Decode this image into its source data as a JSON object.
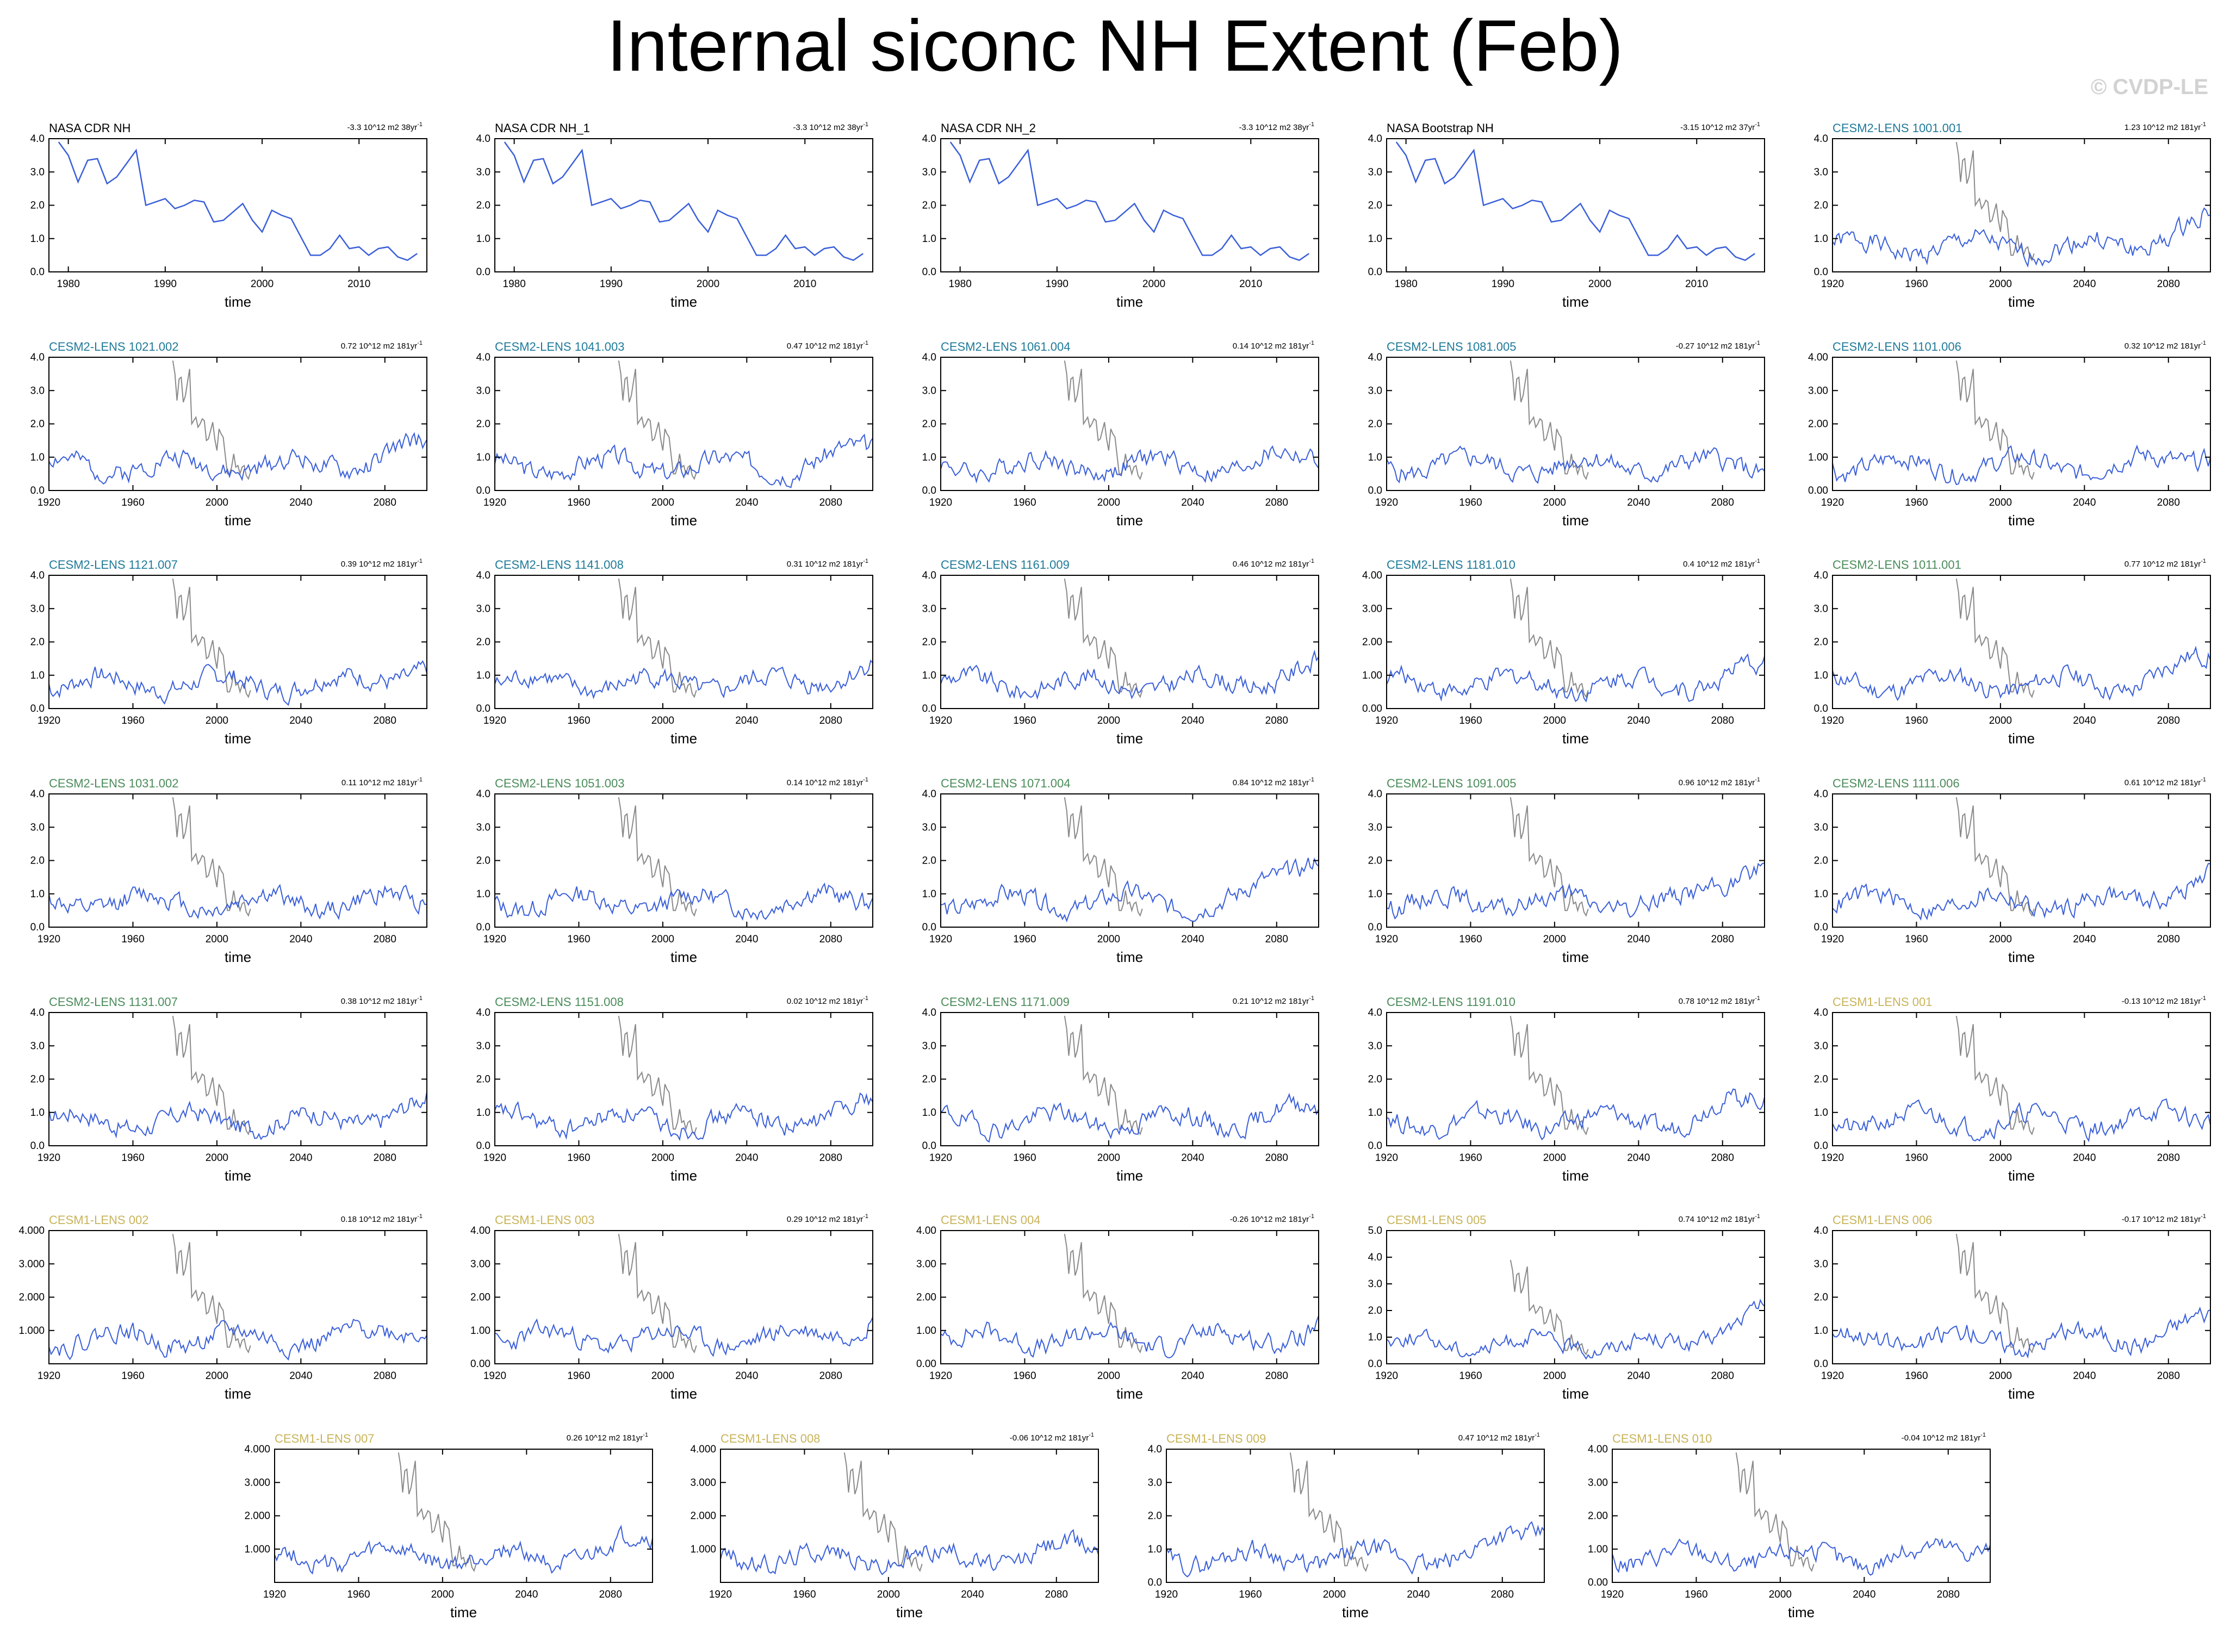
{
  "title": "Internal siconc NH Extent (Feb)",
  "watermark": "© CVDP-LE",
  "colors": {
    "series": "#3a5fd9",
    "observed_overlay": "#8a8a8a",
    "zero_line": "#b5b5b5",
    "cesm2_blue": "#1f7a99",
    "cesm2_green": "#4a8c5a",
    "cesm1_gold": "#c9b45a",
    "obs_black": "#000000"
  },
  "chart_data": [
    {
      "type": "line",
      "title": "NASA CDR NH",
      "title_color": "obs_black",
      "trend": "-3.3 10^12 m2 38yr",
      "xlabel": "time",
      "xlim": [
        1978,
        2017
      ],
      "ylim": [
        0,
        4.0
      ],
      "xticks": [
        1980,
        1990,
        2000,
        2010
      ],
      "yticks": [
        "0.0",
        "1.0",
        "2.0",
        "3.0",
        "4.0"
      ],
      "kind": "obs"
    },
    {
      "type": "line",
      "title": "NASA CDR NH_1",
      "title_color": "obs_black",
      "trend": "-3.3 10^12 m2 38yr",
      "xlabel": "time",
      "xlim": [
        1978,
        2017
      ],
      "ylim": [
        0,
        4.0
      ],
      "xticks": [
        1980,
        1990,
        2000,
        2010
      ],
      "yticks": [
        "0.0",
        "1.0",
        "2.0",
        "3.0",
        "4.0"
      ],
      "kind": "obs"
    },
    {
      "type": "line",
      "title": "NASA CDR NH_2",
      "title_color": "obs_black",
      "trend": "-3.3 10^12 m2 38yr",
      "xlabel": "time",
      "xlim": [
        1978,
        2017
      ],
      "ylim": [
        0,
        4.0
      ],
      "xticks": [
        1980,
        1990,
        2000,
        2010
      ],
      "yticks": [
        "0.0",
        "1.0",
        "2.0",
        "3.0",
        "4.0"
      ],
      "kind": "obs"
    },
    {
      "type": "line",
      "title": "NASA Bootstrap NH",
      "title_color": "obs_black",
      "trend": "-3.15 10^12 m2 37yr",
      "xlabel": "time",
      "xlim": [
        1978,
        2017
      ],
      "ylim": [
        0,
        4.0
      ],
      "xticks": [
        1980,
        1990,
        2000,
        2010
      ],
      "yticks": [
        "0.0",
        "1.0",
        "2.0",
        "3.0",
        "4.0"
      ],
      "kind": "obs"
    },
    {
      "type": "line",
      "title": "CESM2-LENS 1001.001",
      "title_color": "cesm2_blue",
      "trend": "1.23 10^12 m2 181yr",
      "xlabel": "time",
      "xlim": [
        1920,
        2100
      ],
      "ylim": [
        0,
        4.0
      ],
      "xticks": [
        1920,
        1960,
        2000,
        2040,
        2080
      ],
      "yticks": [
        "0.0",
        "1.0",
        "2.0",
        "3.0",
        "4.0"
      ],
      "kind": "model",
      "seed": 1,
      "ramp": 0.9
    },
    {
      "type": "line",
      "title": "CESM2-LENS 1021.002",
      "title_color": "cesm2_blue",
      "trend": "0.72 10^12 m2 181yr",
      "xlabel": "time",
      "xlim": [
        1920,
        2100
      ],
      "ylim": [
        0,
        4.0
      ],
      "xticks": [
        1920,
        1960,
        2000,
        2040,
        2080
      ],
      "yticks": [
        "0.0",
        "1.0",
        "2.0",
        "3.0",
        "4.0"
      ],
      "kind": "model",
      "seed": 2,
      "ramp": 0.6
    },
    {
      "type": "line",
      "title": "CESM2-LENS 1041.003",
      "title_color": "cesm2_blue",
      "trend": "0.47 10^12 m2 181yr",
      "xlabel": "time",
      "xlim": [
        1920,
        2100
      ],
      "ylim": [
        0,
        4.0
      ],
      "xticks": [
        1920,
        1960,
        2000,
        2040,
        2080
      ],
      "yticks": [
        "0.0",
        "1.0",
        "2.0",
        "3.0",
        "4.0"
      ],
      "kind": "model",
      "seed": 3,
      "ramp": 0.5
    },
    {
      "type": "line",
      "title": "CESM2-LENS 1061.004",
      "title_color": "cesm2_blue",
      "trend": "0.14 10^12 m2 181yr",
      "xlabel": "time",
      "xlim": [
        1920,
        2100
      ],
      "ylim": [
        0,
        4.0
      ],
      "xticks": [
        1920,
        1960,
        2000,
        2040,
        2080
      ],
      "yticks": [
        "0.0",
        "1.0",
        "2.0",
        "3.0",
        "4.0"
      ],
      "kind": "model",
      "seed": 4,
      "ramp": 0.3
    },
    {
      "type": "line",
      "title": "CESM2-LENS 1081.005",
      "title_color": "cesm2_blue",
      "trend": "-0.27 10^12 m2 181yr",
      "xlabel": "time",
      "xlim": [
        1920,
        2100
      ],
      "ylim": [
        0,
        4.0
      ],
      "xticks": [
        1920,
        1960,
        2000,
        2040,
        2080
      ],
      "yticks": [
        "0.0",
        "1.0",
        "2.0",
        "3.0",
        "4.0"
      ],
      "kind": "model",
      "seed": 5,
      "ramp": 0.0
    },
    {
      "type": "line",
      "title": "CESM2-LENS 1101.006",
      "title_color": "cesm2_blue",
      "trend": "0.32 10^12 m2 181yr",
      "xlabel": "time",
      "xlim": [
        1920,
        2100
      ],
      "ylim": [
        0,
        4.0
      ],
      "xticks": [
        1920,
        1960,
        2000,
        2040,
        2080
      ],
      "yticks": [
        "0.00",
        "1.00",
        "2.00",
        "3.00",
        "4.00"
      ],
      "kind": "model",
      "seed": 6,
      "ramp": 0.4
    },
    {
      "type": "line",
      "title": "CESM2-LENS 1121.007",
      "title_color": "cesm2_blue",
      "trend": "0.39 10^12 m2 181yr",
      "xlabel": "time",
      "xlim": [
        1920,
        2100
      ],
      "ylim": [
        0,
        4.0
      ],
      "xticks": [
        1920,
        1960,
        2000,
        2040,
        2080
      ],
      "yticks": [
        "0.0",
        "1.0",
        "2.0",
        "3.0",
        "4.0"
      ],
      "kind": "model",
      "seed": 7,
      "ramp": 0.5
    },
    {
      "type": "line",
      "title": "CESM2-LENS 1141.008",
      "title_color": "cesm2_blue",
      "trend": "0.31 10^12 m2 181yr",
      "xlabel": "time",
      "xlim": [
        1920,
        2100
      ],
      "ylim": [
        0,
        4.0
      ],
      "xticks": [
        1920,
        1960,
        2000,
        2040,
        2080
      ],
      "yticks": [
        "0.0",
        "1.0",
        "2.0",
        "3.0",
        "4.0"
      ],
      "kind": "model",
      "seed": 8,
      "ramp": 0.5
    },
    {
      "type": "line",
      "title": "CESM2-LENS 1161.009",
      "title_color": "cesm2_blue",
      "trend": "0.46 10^12 m2 181yr",
      "xlabel": "time",
      "xlim": [
        1920,
        2100
      ],
      "ylim": [
        0,
        4.0
      ],
      "xticks": [
        1920,
        1960,
        2000,
        2040,
        2080
      ],
      "yticks": [
        "0.0",
        "1.0",
        "2.0",
        "3.0",
        "4.0"
      ],
      "kind": "model",
      "seed": 9,
      "ramp": 0.5
    },
    {
      "type": "line",
      "title": "CESM2-LENS 1181.010",
      "title_color": "cesm2_blue",
      "trend": "0.4 10^12 m2 181yr",
      "xlabel": "time",
      "xlim": [
        1920,
        2100
      ],
      "ylim": [
        0,
        4.0
      ],
      "xticks": [
        1920,
        1960,
        2000,
        2040,
        2080
      ],
      "yticks": [
        "0.00",
        "1.00",
        "2.00",
        "3.00",
        "4.00"
      ],
      "kind": "model",
      "seed": 10,
      "ramp": 0.4
    },
    {
      "type": "line",
      "title": "CESM2-LENS 1011.001",
      "title_color": "cesm2_green",
      "trend": "0.77 10^12 m2 181yr",
      "xlabel": "time",
      "xlim": [
        1920,
        2100
      ],
      "ylim": [
        0,
        4.0
      ],
      "xticks": [
        1920,
        1960,
        2000,
        2040,
        2080
      ],
      "yticks": [
        "0.0",
        "1.0",
        "2.0",
        "3.0",
        "4.0"
      ],
      "kind": "model",
      "seed": 11,
      "ramp": 0.8
    },
    {
      "type": "line",
      "title": "CESM2-LENS 1031.002",
      "title_color": "cesm2_green",
      "trend": "0.11 10^12 m2 181yr",
      "xlabel": "time",
      "xlim": [
        1920,
        2100
      ],
      "ylim": [
        0,
        4.0
      ],
      "xticks": [
        1920,
        1960,
        2000,
        2040,
        2080
      ],
      "yticks": [
        "0.0",
        "1.0",
        "2.0",
        "3.0",
        "4.0"
      ],
      "kind": "model",
      "seed": 12,
      "ramp": 0.1
    },
    {
      "type": "line",
      "title": "CESM2-LENS 1051.003",
      "title_color": "cesm2_green",
      "trend": "0.14 10^12 m2 181yr",
      "xlabel": "time",
      "xlim": [
        1920,
        2100
      ],
      "ylim": [
        0,
        4.0
      ],
      "xticks": [
        1920,
        1960,
        2000,
        2040,
        2080
      ],
      "yticks": [
        "0.0",
        "1.0",
        "2.0",
        "3.0",
        "4.0"
      ],
      "kind": "model",
      "seed": 13,
      "ramp": 0.2
    },
    {
      "type": "line",
      "title": "CESM2-LENS 1071.004",
      "title_color": "cesm2_green",
      "trend": "0.84 10^12 m2 181yr",
      "xlabel": "time",
      "xlim": [
        1920,
        2100
      ],
      "ylim": [
        0,
        4.0
      ],
      "xticks": [
        1920,
        1960,
        2000,
        2040,
        2080
      ],
      "yticks": [
        "0.0",
        "1.0",
        "2.0",
        "3.0",
        "4.0"
      ],
      "kind": "model",
      "seed": 14,
      "ramp": 1.6
    },
    {
      "type": "line",
      "title": "CESM2-LENS 1091.005",
      "title_color": "cesm2_green",
      "trend": "0.96 10^12 m2 181yr",
      "xlabel": "time",
      "xlim": [
        1920,
        2100
      ],
      "ylim": [
        0,
        4.0
      ],
      "xticks": [
        1920,
        1960,
        2000,
        2040,
        2080
      ],
      "yticks": [
        "0.0",
        "1.0",
        "2.0",
        "3.0",
        "4.0"
      ],
      "kind": "model",
      "seed": 15,
      "ramp": 1.3
    },
    {
      "type": "line",
      "title": "CESM2-LENS 1111.006",
      "title_color": "cesm2_green",
      "trend": "0.61 10^12 m2 181yr",
      "xlabel": "time",
      "xlim": [
        1920,
        2100
      ],
      "ylim": [
        0,
        4.0
      ],
      "xticks": [
        1920,
        1960,
        2000,
        2040,
        2080
      ],
      "yticks": [
        "0.0",
        "1.0",
        "2.0",
        "3.0",
        "4.0"
      ],
      "kind": "model",
      "seed": 16,
      "ramp": 0.8
    },
    {
      "type": "line",
      "title": "CESM2-LENS 1131.007",
      "title_color": "cesm2_green",
      "trend": "0.38 10^12 m2 181yr",
      "xlabel": "time",
      "xlim": [
        1920,
        2100
      ],
      "ylim": [
        0,
        4.0
      ],
      "xticks": [
        1920,
        1960,
        2000,
        2040,
        2080
      ],
      "yticks": [
        "0.0",
        "1.0",
        "2.0",
        "3.0",
        "4.0"
      ],
      "kind": "model",
      "seed": 17,
      "ramp": 0.5
    },
    {
      "type": "line",
      "title": "CESM2-LENS 1151.008",
      "title_color": "cesm2_green",
      "trend": "0.02 10^12 m2 181yr",
      "xlabel": "time",
      "xlim": [
        1920,
        2100
      ],
      "ylim": [
        0,
        4.0
      ],
      "xticks": [
        1920,
        1960,
        2000,
        2040,
        2080
      ],
      "yticks": [
        "0.0",
        "1.0",
        "2.0",
        "3.0",
        "4.0"
      ],
      "kind": "model",
      "seed": 18,
      "ramp": 0.5
    },
    {
      "type": "line",
      "title": "CESM2-LENS 1171.009",
      "title_color": "cesm2_green",
      "trend": "0.21 10^12 m2 181yr",
      "xlabel": "time",
      "xlim": [
        1920,
        2100
      ],
      "ylim": [
        0,
        4.0
      ],
      "xticks": [
        1920,
        1960,
        2000,
        2040,
        2080
      ],
      "yticks": [
        "0.0",
        "1.0",
        "2.0",
        "3.0",
        "4.0"
      ],
      "kind": "model",
      "seed": 19,
      "ramp": 0.4
    },
    {
      "type": "line",
      "title": "CESM2-LENS 1191.010",
      "title_color": "cesm2_green",
      "trend": "0.78 10^12 m2 181yr",
      "xlabel": "time",
      "xlim": [
        1920,
        2100
      ],
      "ylim": [
        0,
        4.0
      ],
      "xticks": [
        1920,
        1960,
        2000,
        2040,
        2080
      ],
      "yticks": [
        "0.0",
        "1.0",
        "2.0",
        "3.0",
        "4.0"
      ],
      "kind": "model",
      "seed": 20,
      "ramp": 0.8
    },
    {
      "type": "line",
      "title": "CESM1-LENS 001",
      "title_color": "cesm1_gold",
      "trend": "-0.13 10^12 m2 181yr",
      "xlabel": "time",
      "xlim": [
        1920,
        2100
      ],
      "ylim": [
        0,
        4.0
      ],
      "xticks": [
        1920,
        1960,
        2000,
        2040,
        2080
      ],
      "yticks": [
        "0.0",
        "1.0",
        "2.0",
        "3.0",
        "4.0"
      ],
      "kind": "model",
      "seed": 21,
      "ramp": 0.2
    },
    {
      "type": "line",
      "title": "CESM1-LENS 002",
      "title_color": "cesm1_gold",
      "trend": "0.18 10^12 m2 181yr",
      "xlabel": "time",
      "xlim": [
        1920,
        2100
      ],
      "ylim": [
        0,
        4.0
      ],
      "xticks": [
        1920,
        1960,
        2000,
        2040,
        2080
      ],
      "yticks": [
        "",
        "1.000",
        "2.000",
        "3.000",
        "4.000"
      ],
      "kind": "model",
      "seed": 22,
      "ramp": 0.5
    },
    {
      "type": "line",
      "title": "CESM1-LENS 003",
      "title_color": "cesm1_gold",
      "trend": "0.29 10^12 m2 181yr",
      "xlabel": "time",
      "xlim": [
        1920,
        2100
      ],
      "ylim": [
        0,
        4.0
      ],
      "xticks": [
        1920,
        1960,
        2000,
        2040,
        2080
      ],
      "yticks": [
        "0.00",
        "1.00",
        "2.00",
        "3.00",
        "4.00"
      ],
      "kind": "model",
      "seed": 23,
      "ramp": 0.6
    },
    {
      "type": "line",
      "title": "CESM1-LENS 004",
      "title_color": "cesm1_gold",
      "trend": "-0.26 10^12 m2 181yr",
      "xlabel": "time",
      "xlim": [
        1920,
        2100
      ],
      "ylim": [
        0,
        4.0
      ],
      "xticks": [
        1920,
        1960,
        2000,
        2040,
        2080
      ],
      "yticks": [
        "0.00",
        "1.00",
        "2.00",
        "3.00",
        "4.00"
      ],
      "kind": "model",
      "seed": 24,
      "ramp": 0.2
    },
    {
      "type": "line",
      "title": "CESM1-LENS 005",
      "title_color": "cesm1_gold",
      "trend": "0.74 10^12 m2 181yr",
      "xlabel": "time",
      "xlim": [
        1920,
        2100
      ],
      "ylim": [
        0,
        5.0
      ],
      "xticks": [
        1920,
        1960,
        2000,
        2040,
        2080
      ],
      "yticks": [
        "0.0",
        "1.0",
        "2.0",
        "3.0",
        "4.0",
        "5.0"
      ],
      "kind": "model",
      "seed": 25,
      "ramp": 1.3
    },
    {
      "type": "line",
      "title": "CESM1-LENS 006",
      "title_color": "cesm1_gold",
      "trend": "-0.17 10^12 m2 181yr",
      "xlabel": "time",
      "xlim": [
        1920,
        2100
      ],
      "ylim": [
        0,
        4.0
      ],
      "xticks": [
        1920,
        1960,
        2000,
        2040,
        2080
      ],
      "yticks": [
        "0.0",
        "1.0",
        "2.0",
        "3.0",
        "4.0"
      ],
      "kind": "model",
      "seed": 26,
      "ramp": 0.6
    },
    {
      "type": "line",
      "title": "CESM1-LENS 007",
      "title_color": "cesm1_gold",
      "trend": "0.26 10^12 m2 181yr",
      "xlabel": "time",
      "xlim": [
        1920,
        2100
      ],
      "ylim": [
        0,
        4.0
      ],
      "xticks": [
        1920,
        1960,
        2000,
        2040,
        2080
      ],
      "yticks": [
        "",
        "1.000",
        "2.000",
        "3.000",
        "4.000"
      ],
      "kind": "model",
      "seed": 27,
      "ramp": 0.5
    },
    {
      "type": "line",
      "title": "CESM1-LENS 008",
      "title_color": "cesm1_gold",
      "trend": "-0.06 10^12 m2 181yr",
      "xlabel": "time",
      "xlim": [
        1920,
        2100
      ],
      "ylim": [
        0,
        4.0
      ],
      "xticks": [
        1920,
        1960,
        2000,
        2040,
        2080
      ],
      "yticks": [
        "",
        "1.000",
        "2.000",
        "3.000",
        "4.000"
      ],
      "kind": "model",
      "seed": 28,
      "ramp": 0.4
    },
    {
      "type": "line",
      "title": "CESM1-LENS 009",
      "title_color": "cesm1_gold",
      "trend": "0.47 10^12 m2 181yr",
      "xlabel": "time",
      "xlim": [
        1920,
        2100
      ],
      "ylim": [
        0,
        4.0
      ],
      "xticks": [
        1920,
        1960,
        2000,
        2040,
        2080
      ],
      "yticks": [
        "0.0",
        "1.0",
        "2.0",
        "3.0",
        "4.0"
      ],
      "kind": "model",
      "seed": 29,
      "ramp": 1.0
    },
    {
      "type": "line",
      "title": "CESM1-LENS 010",
      "title_color": "cesm1_gold",
      "trend": "-0.04 10^12 m2 181yr",
      "xlabel": "time",
      "xlim": [
        1920,
        2100
      ],
      "ylim": [
        0,
        4.0
      ],
      "xticks": [
        1920,
        1960,
        2000,
        2040,
        2080
      ],
      "yticks": [
        "0.00",
        "1.00",
        "2.00",
        "3.00",
        "4.00"
      ],
      "kind": "model",
      "seed": 30,
      "ramp": 0.5
    }
  ],
  "observed_series": {
    "years": [
      1979,
      1980,
      1981,
      1982,
      1983,
      1984,
      1985,
      1986,
      1987,
      1988,
      1989,
      1990,
      1991,
      1992,
      1993,
      1994,
      1995,
      1996,
      1997,
      1998,
      1999,
      2000,
      2001,
      2002,
      2003,
      2004,
      2005,
      2006,
      2007,
      2008,
      2009,
      2010,
      2011,
      2012,
      2013,
      2014,
      2015,
      2016
    ],
    "values": [
      3.9,
      3.5,
      2.7,
      3.35,
      3.4,
      2.65,
      2.85,
      3.25,
      3.65,
      2.0,
      2.1,
      2.2,
      1.9,
      2.0,
      2.15,
      2.1,
      1.5,
      1.55,
      1.8,
      2.05,
      1.55,
      1.2,
      1.85,
      1.7,
      1.6,
      1.05,
      0.5,
      0.5,
      0.7,
      1.1,
      0.7,
      0.75,
      0.5,
      0.7,
      0.75,
      0.45,
      0.35,
      0.55
    ]
  }
}
